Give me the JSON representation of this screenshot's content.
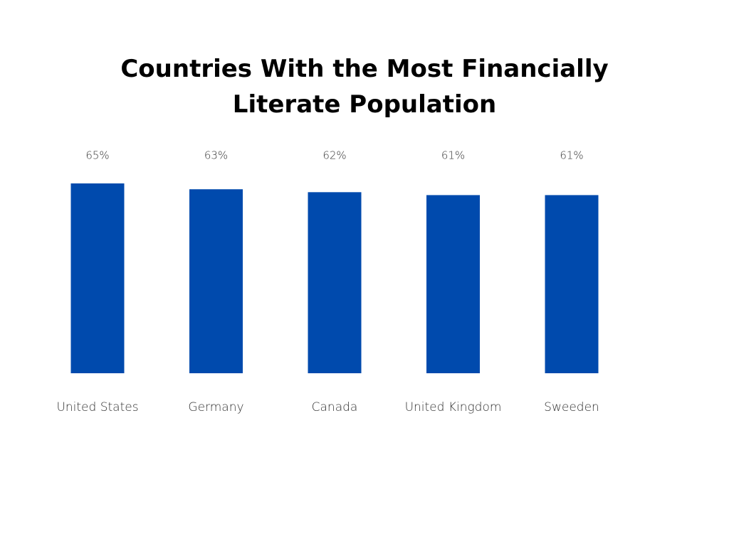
{
  "chart_data": {
    "type": "bar",
    "title": "Countries With the Most Financially Literate Population",
    "categories": [
      "United States",
      "Germany",
      "Canada",
      "United Kingdom",
      "Sweeden"
    ],
    "values": [
      65,
      63,
      62,
      61,
      61
    ],
    "value_labels": [
      "65%",
      "63%",
      "62%",
      "61%",
      "61%"
    ],
    "color": "#004aad"
  }
}
